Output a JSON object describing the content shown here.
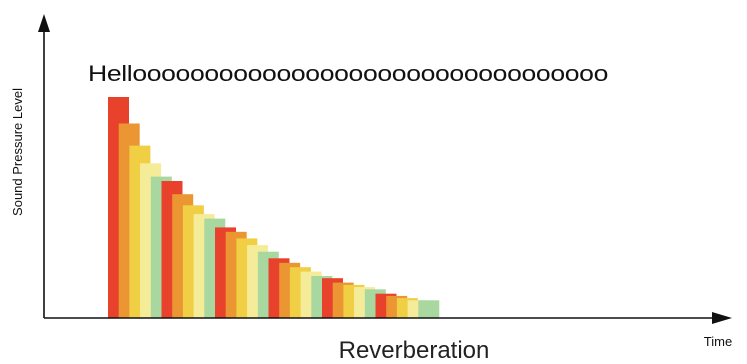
{
  "chart_data": {
    "type": "bar",
    "title": "",
    "xlabel": "Time",
    "ylabel": "Sound Pressure Level",
    "caption": "Reverberation",
    "annotation": "Hellooooooooooooooooooooooooooooooooo",
    "ylim": [
      0,
      100
    ],
    "grid": false,
    "legend": "none",
    "palette": [
      "#e8412c",
      "#eb9632",
      "#f1cf45",
      "#f5ec9a",
      "#a9d7a0"
    ],
    "values": [
      100,
      88,
      78,
      70,
      64,
      62,
      56,
      51,
      47,
      45,
      41,
      39,
      36,
      33,
      30,
      27,
      25,
      23,
      21,
      19,
      18,
      16,
      15,
      14,
      13,
      11,
      10,
      9,
      8,
      8
    ]
  }
}
